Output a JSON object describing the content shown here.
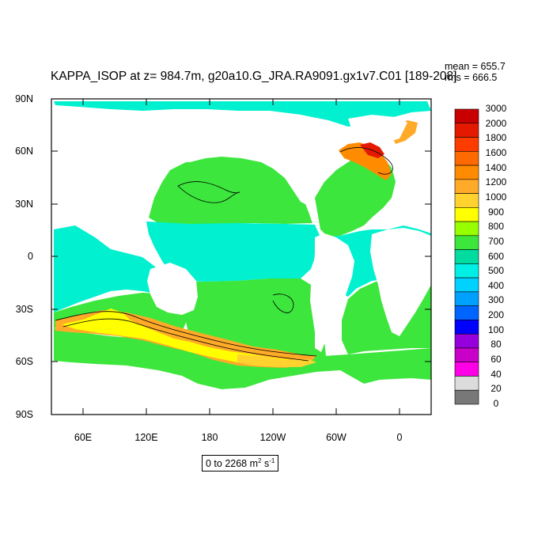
{
  "title": "KAPPA_ISOP at z= 984.7m, g20a10.G_JRA.RA9091.gx1v7.C01 [189-208]",
  "stats": {
    "mean": "mean = 655.7",
    "rms": "rms = 666.5"
  },
  "lat_labels": [
    "90N",
    "60N",
    "30N",
    "0",
    "30S",
    "60S",
    "90S"
  ],
  "lon_labels": [
    "60E",
    "120E",
    "180",
    "120W",
    "60W",
    "0"
  ],
  "colorbar": {
    "labels": [
      "3000",
      "2000",
      "1800",
      "1600",
      "1400",
      "1200",
      "1000",
      "900",
      "800",
      "700",
      "600",
      "500",
      "400",
      "300",
      "200",
      "100",
      "80",
      "60",
      "40",
      "20",
      "0"
    ],
    "colors": [
      "#c80000",
      "#e41a00",
      "#ff3c00",
      "#ff6a00",
      "#ff8c00",
      "#ffaa28",
      "#ffd230",
      "#ffff00",
      "#98ff00",
      "#3ce63c",
      "#00dca0",
      "#00f0e6",
      "#00d2ff",
      "#00a0ff",
      "#0064ff",
      "#0000ff",
      "#9600dc",
      "#c800c8",
      "#ff00e6",
      "#dcdcdc",
      "#787878"
    ]
  },
  "range": {
    "text": "0 to 2268 m",
    "sup1": "2",
    "mid": " s",
    "sup2": "-1"
  }
}
